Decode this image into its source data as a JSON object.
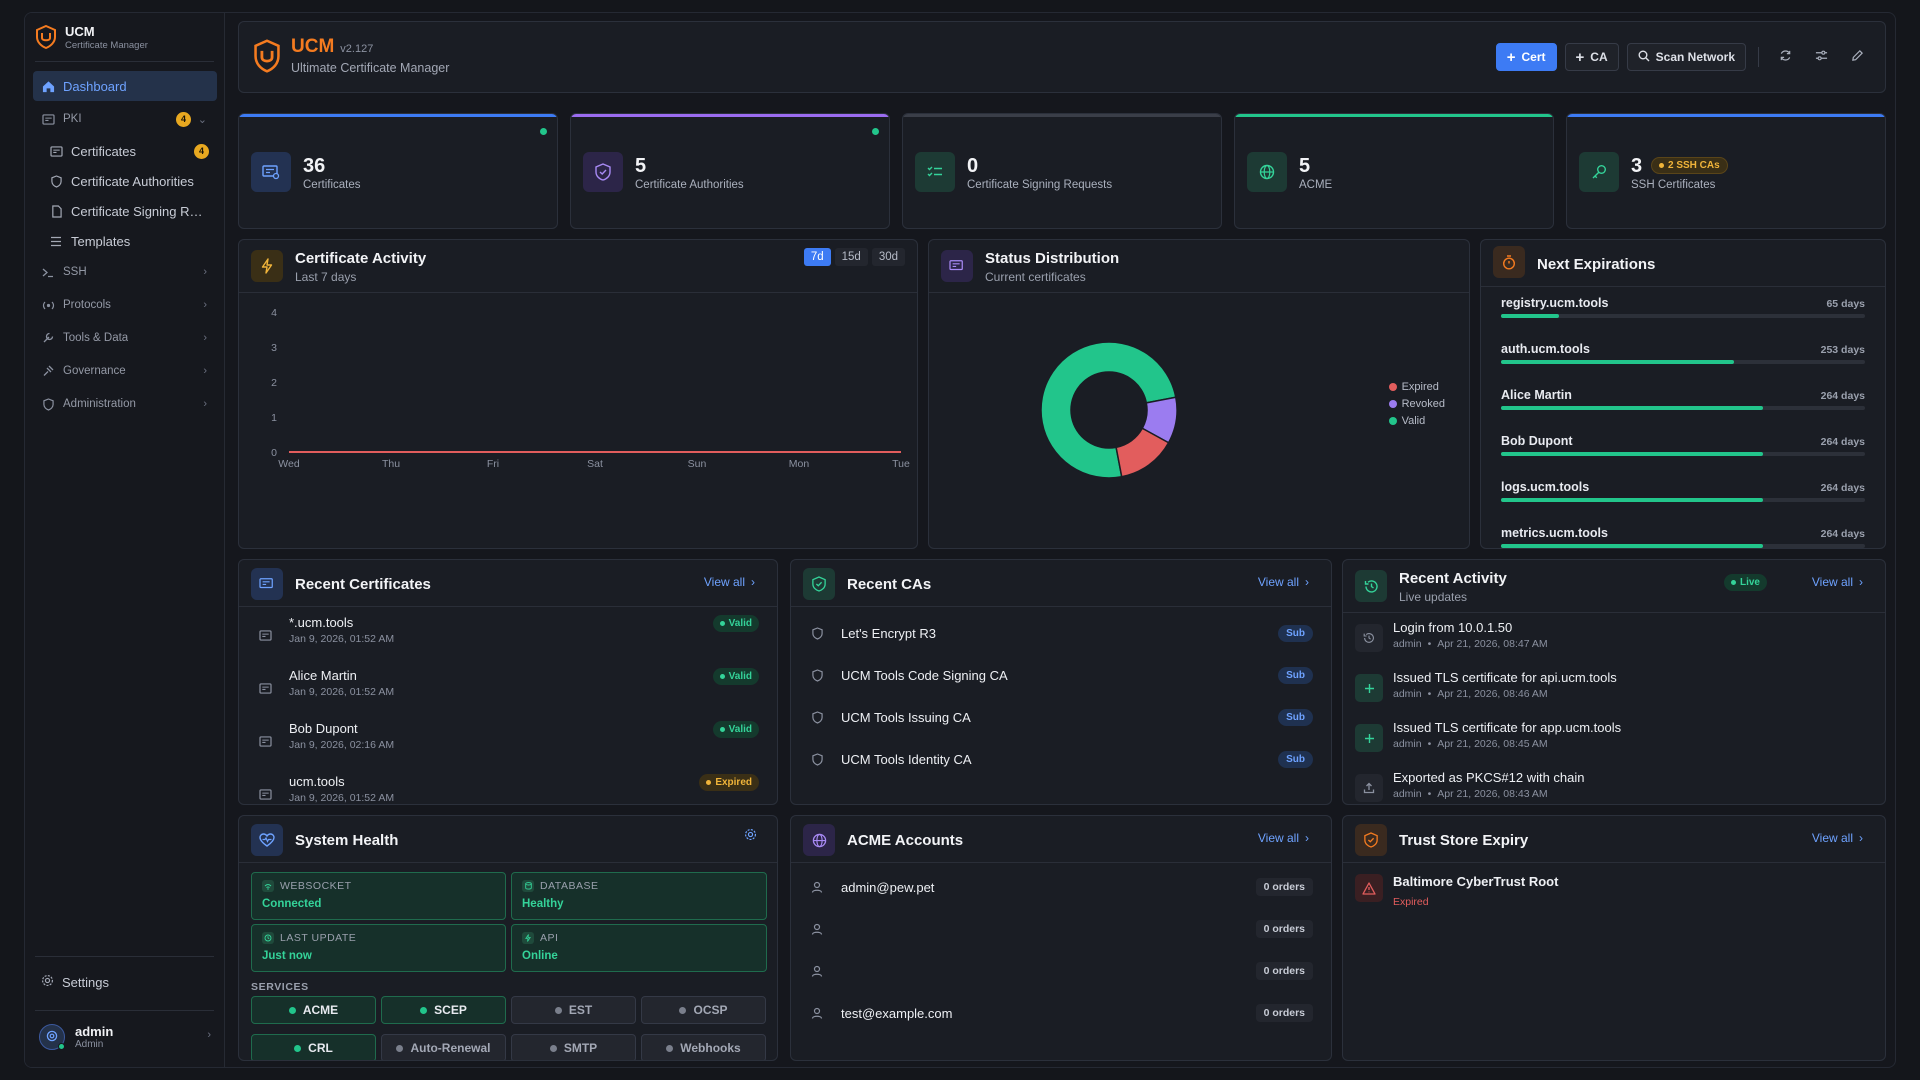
{
  "sidebar": {
    "brand": {
      "name": "UCM",
      "subtitle": "Certificate Manager"
    },
    "dashboard": "Dashboard",
    "pki": {
      "label": "PKI",
      "badge": "4"
    },
    "pki_items": [
      {
        "label": "Certificates",
        "badge": "4"
      },
      {
        "label": "Certificate Authorities"
      },
      {
        "label": "Certificate Signing Requests"
      },
      {
        "label": "Templates"
      }
    ],
    "sections": [
      "SSH",
      "Protocols",
      "Tools & Data",
      "Governance",
      "Administration"
    ],
    "settings": "Settings",
    "user": {
      "name": "admin",
      "role": "Admin"
    }
  },
  "header": {
    "title": "UCM",
    "version": "v2.127",
    "subtitle": "Ultimate Certificate Manager",
    "btn_cert": "Cert",
    "btn_ca": "CA",
    "btn_scan": "Scan Network"
  },
  "stats": [
    {
      "value": "36",
      "label": "Certificates",
      "color": "#3d7bf4"
    },
    {
      "value": "5",
      "label": "Certificate Authorities",
      "color": "#9b6cf0"
    },
    {
      "value": "0",
      "label": "Certificate Signing Requests",
      "color": "#5a5f6b"
    },
    {
      "value": "5",
      "label": "ACME",
      "color": "#22c58b"
    },
    {
      "value": "3",
      "label": "SSH Certificates",
      "badge": "2 SSH CAs",
      "color": "#3d7bf4"
    }
  ],
  "activity": {
    "title": "Certificate Activity",
    "subtitle": "Last 7 days",
    "ranges": [
      "7d",
      "15d",
      "30d"
    ],
    "active_range": "7d"
  },
  "chart_data": {
    "type": "line",
    "title": "Certificate Activity",
    "categories": [
      "Wed",
      "Thu",
      "Fri",
      "Sat",
      "Sun",
      "Mon",
      "Tue"
    ],
    "yticks": [
      "4",
      "3",
      "2",
      "1",
      "0"
    ],
    "ylim": [
      0,
      4
    ],
    "series": [
      {
        "values": [
          0,
          0,
          0,
          0,
          0,
          0,
          0
        ],
        "color": "#e25d5d"
      }
    ]
  },
  "status": {
    "title": "Status Distribution",
    "subtitle": "Current certificates",
    "legend": [
      {
        "label": "Expired",
        "color": "#e25d5d"
      },
      {
        "label": "Revoked",
        "color": "#9b7cf0"
      },
      {
        "label": "Valid",
        "color": "#22c58b"
      }
    ],
    "fractions": {
      "valid": 0.75,
      "revoked": 0.11,
      "expired": 0.14
    }
  },
  "expirations": {
    "title": "Next Expirations",
    "items": [
      {
        "name": "registry.ucm.tools",
        "days": "65 days",
        "fill": 0.16
      },
      {
        "name": "auth.ucm.tools",
        "days": "253 days",
        "fill": 0.64
      },
      {
        "name": "Alice Martin",
        "days": "264 days",
        "fill": 0.72
      },
      {
        "name": "Bob Dupont",
        "days": "264 days",
        "fill": 0.72
      },
      {
        "name": "logs.ucm.tools",
        "days": "264 days",
        "fill": 0.72
      },
      {
        "name": "metrics.ucm.tools",
        "days": "264 days",
        "fill": 0.72
      }
    ]
  },
  "recent_certs": {
    "title": "Recent Certificates",
    "view_all": "View all",
    "items": [
      {
        "name": "*.ucm.tools",
        "date": "Jan 9, 2026, 01:52 AM",
        "status": "Valid",
        "kind": "valid"
      },
      {
        "name": "Alice Martin",
        "date": "Jan 9, 2026, 01:52 AM",
        "status": "Valid",
        "kind": "valid"
      },
      {
        "name": "Bob Dupont",
        "date": "Jan 9, 2026, 02:16 AM",
        "status": "Valid",
        "kind": "valid"
      },
      {
        "name": "ucm.tools",
        "date": "Jan 9, 2026, 01:52 AM",
        "status": "Expired",
        "kind": "expired"
      }
    ]
  },
  "recent_cas": {
    "title": "Recent CAs",
    "view_all": "View all",
    "items": [
      {
        "name": "Let's Encrypt R3",
        "tag": "Sub"
      },
      {
        "name": "UCM Tools Code Signing CA",
        "tag": "Sub"
      },
      {
        "name": "UCM Tools Issuing CA",
        "tag": "Sub"
      },
      {
        "name": "UCM Tools Identity CA",
        "tag": "Sub"
      }
    ]
  },
  "recent_activity": {
    "title": "Recent Activity",
    "subtitle": "Live updates",
    "live": "Live",
    "view_all": "View all",
    "items": [
      {
        "text": "Login from 10.0.1.50",
        "user": "admin",
        "time": "Apr 21, 2026, 08:47 AM",
        "icon": "history-icon"
      },
      {
        "text": "Issued TLS certificate for api.ucm.tools",
        "user": "admin",
        "time": "Apr 21, 2026, 08:46 AM",
        "icon": "plus-icon"
      },
      {
        "text": "Issued TLS certificate for app.ucm.tools",
        "user": "admin",
        "time": "Apr 21, 2026, 08:45 AM",
        "icon": "plus-icon"
      },
      {
        "text": "Exported as PKCS#12 with chain",
        "user": "admin",
        "time": "Apr 21, 2026, 08:43 AM",
        "icon": "export-icon"
      }
    ]
  },
  "health": {
    "title": "System Health",
    "checks": [
      {
        "label": "WEBSOCKET",
        "value": "Connected"
      },
      {
        "label": "DATABASE",
        "value": "Healthy"
      },
      {
        "label": "LAST UPDATE",
        "value": "Just now"
      },
      {
        "label": "API",
        "value": "Online"
      }
    ],
    "services_label": "SERVICES",
    "services": [
      {
        "name": "ACME",
        "on": true
      },
      {
        "name": "SCEP",
        "on": true
      },
      {
        "name": "EST",
        "on": false
      },
      {
        "name": "OCSP",
        "on": false
      },
      {
        "name": "CRL",
        "on": true
      },
      {
        "name": "Auto-Renewal",
        "on": false
      },
      {
        "name": "SMTP",
        "on": false
      },
      {
        "name": "Webhooks",
        "on": false
      }
    ]
  },
  "acme": {
    "title": "ACME Accounts",
    "view_all": "View all",
    "items": [
      {
        "email": "admin@pew.pet",
        "orders": "0 orders"
      },
      {
        "email": "",
        "orders": "0 orders"
      },
      {
        "email": "",
        "orders": "0 orders"
      },
      {
        "email": "test@example.com",
        "orders": "0 orders"
      }
    ]
  },
  "trust": {
    "title": "Trust Store Expiry",
    "view_all": "View all",
    "items": [
      {
        "name": "Baltimore CyberTrust Root",
        "status": "Expired"
      }
    ]
  }
}
